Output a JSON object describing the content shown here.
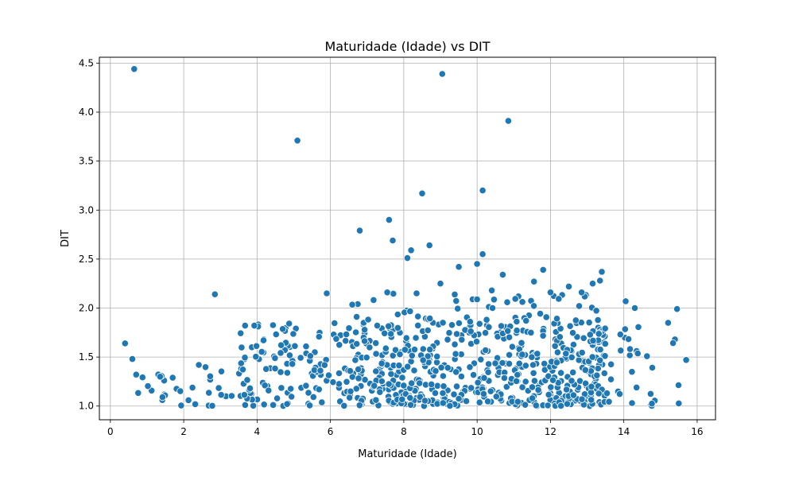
{
  "chart_data": {
    "type": "scatter",
    "title": "Maturidade (Idade) vs DIT",
    "xlabel": "Maturidade (Idade)",
    "ylabel": "DIT",
    "xlim": [
      -0.3,
      16.5
    ],
    "ylim": [
      0.86,
      4.56
    ],
    "xticks": [
      0,
      2,
      4,
      6,
      8,
      10,
      12,
      14,
      16
    ],
    "yticks": [
      1.0,
      1.5,
      2.0,
      2.5,
      3.0,
      3.5,
      4.0,
      4.5
    ],
    "grid": true,
    "point_color": "#1f77b4",
    "point_edge_color": "#ffffff",
    "outliers": [
      [
        0.65,
        4.44
      ],
      [
        9.05,
        4.39
      ],
      [
        10.85,
        3.91
      ],
      [
        5.1,
        3.71
      ],
      [
        8.5,
        3.17
      ],
      [
        10.15,
        3.2
      ],
      [
        7.6,
        2.9
      ],
      [
        6.8,
        2.79
      ],
      [
        7.7,
        2.69
      ],
      [
        8.7,
        2.64
      ],
      [
        8.2,
        2.59
      ],
      [
        8.1,
        2.51
      ],
      [
        10.15,
        2.55
      ],
      [
        10.0,
        2.45
      ],
      [
        9.5,
        2.42
      ],
      [
        11.8,
        2.39
      ],
      [
        13.4,
        2.37
      ],
      [
        10.7,
        2.34
      ],
      [
        13.35,
        2.28
      ],
      [
        11.55,
        2.27
      ],
      [
        9.0,
        2.25
      ],
      [
        13.15,
        2.25
      ],
      [
        12.5,
        2.22
      ],
      [
        2.85,
        2.14
      ],
      [
        5.9,
        2.15
      ],
      [
        7.55,
        2.16
      ],
      [
        8.35,
        2.15
      ],
      [
        10.4,
        2.18
      ],
      [
        12.0,
        2.16
      ],
      [
        12.85,
        2.16
      ],
      [
        0.4,
        1.64
      ],
      [
        0.6,
        1.48
      ],
      [
        15.7,
        1.47
      ],
      [
        15.45,
        1.99
      ],
      [
        14.3,
        2.0
      ],
      [
        14.05,
        2.07
      ]
    ],
    "cluster_regions": [
      {
        "x": [
          0.7,
          4.0
        ],
        "y": [
          1.0,
          1.45
        ],
        "count": 40
      },
      {
        "x": [
          3.5,
          6.5
        ],
        "y": [
          1.0,
          1.85
        ],
        "count": 120
      },
      {
        "x": [
          6.5,
          13.5
        ],
        "y": [
          1.0,
          1.85
        ],
        "count": 520
      },
      {
        "x": [
          6.5,
          13.5
        ],
        "y": [
          1.85,
          2.15
        ],
        "count": 55
      },
      {
        "x": [
          13.0,
          15.5
        ],
        "y": [
          1.0,
          1.85
        ],
        "count": 45
      }
    ]
  }
}
